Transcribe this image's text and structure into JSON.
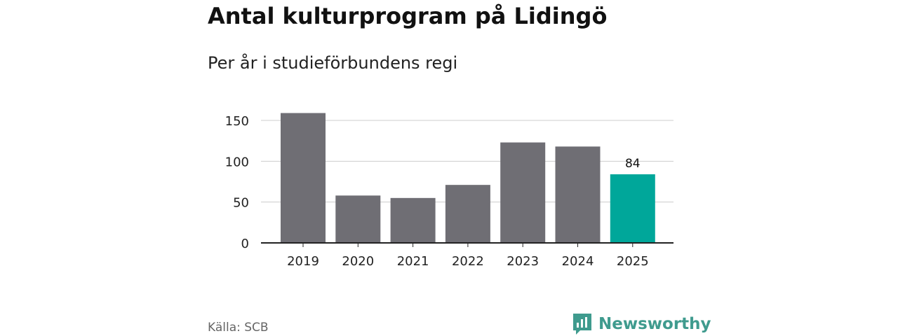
{
  "title": "Antal kulturprogram på Lidingö",
  "subtitle": "Per år i studieförbundens regi",
  "source": "Källa: SCB",
  "brand": "Newsworthy",
  "colors": {
    "bar": "#6f6e74",
    "highlight": "#00a79a",
    "grid": "#cccccc",
    "axis": "#222222",
    "brand": "#3f9b8e"
  },
  "chart_data": {
    "type": "bar",
    "categories": [
      "2019",
      "2020",
      "2021",
      "2022",
      "2023",
      "2024",
      "2025"
    ],
    "values": [
      159,
      58,
      55,
      71,
      123,
      118,
      84
    ],
    "highlight_index": 6,
    "data_labels": [
      {
        "index": 6,
        "text": "84"
      }
    ],
    "yticks": [
      0,
      50,
      100,
      150
    ],
    "ylim": [
      0,
      150
    ],
    "grid": true,
    "legend": "none"
  }
}
